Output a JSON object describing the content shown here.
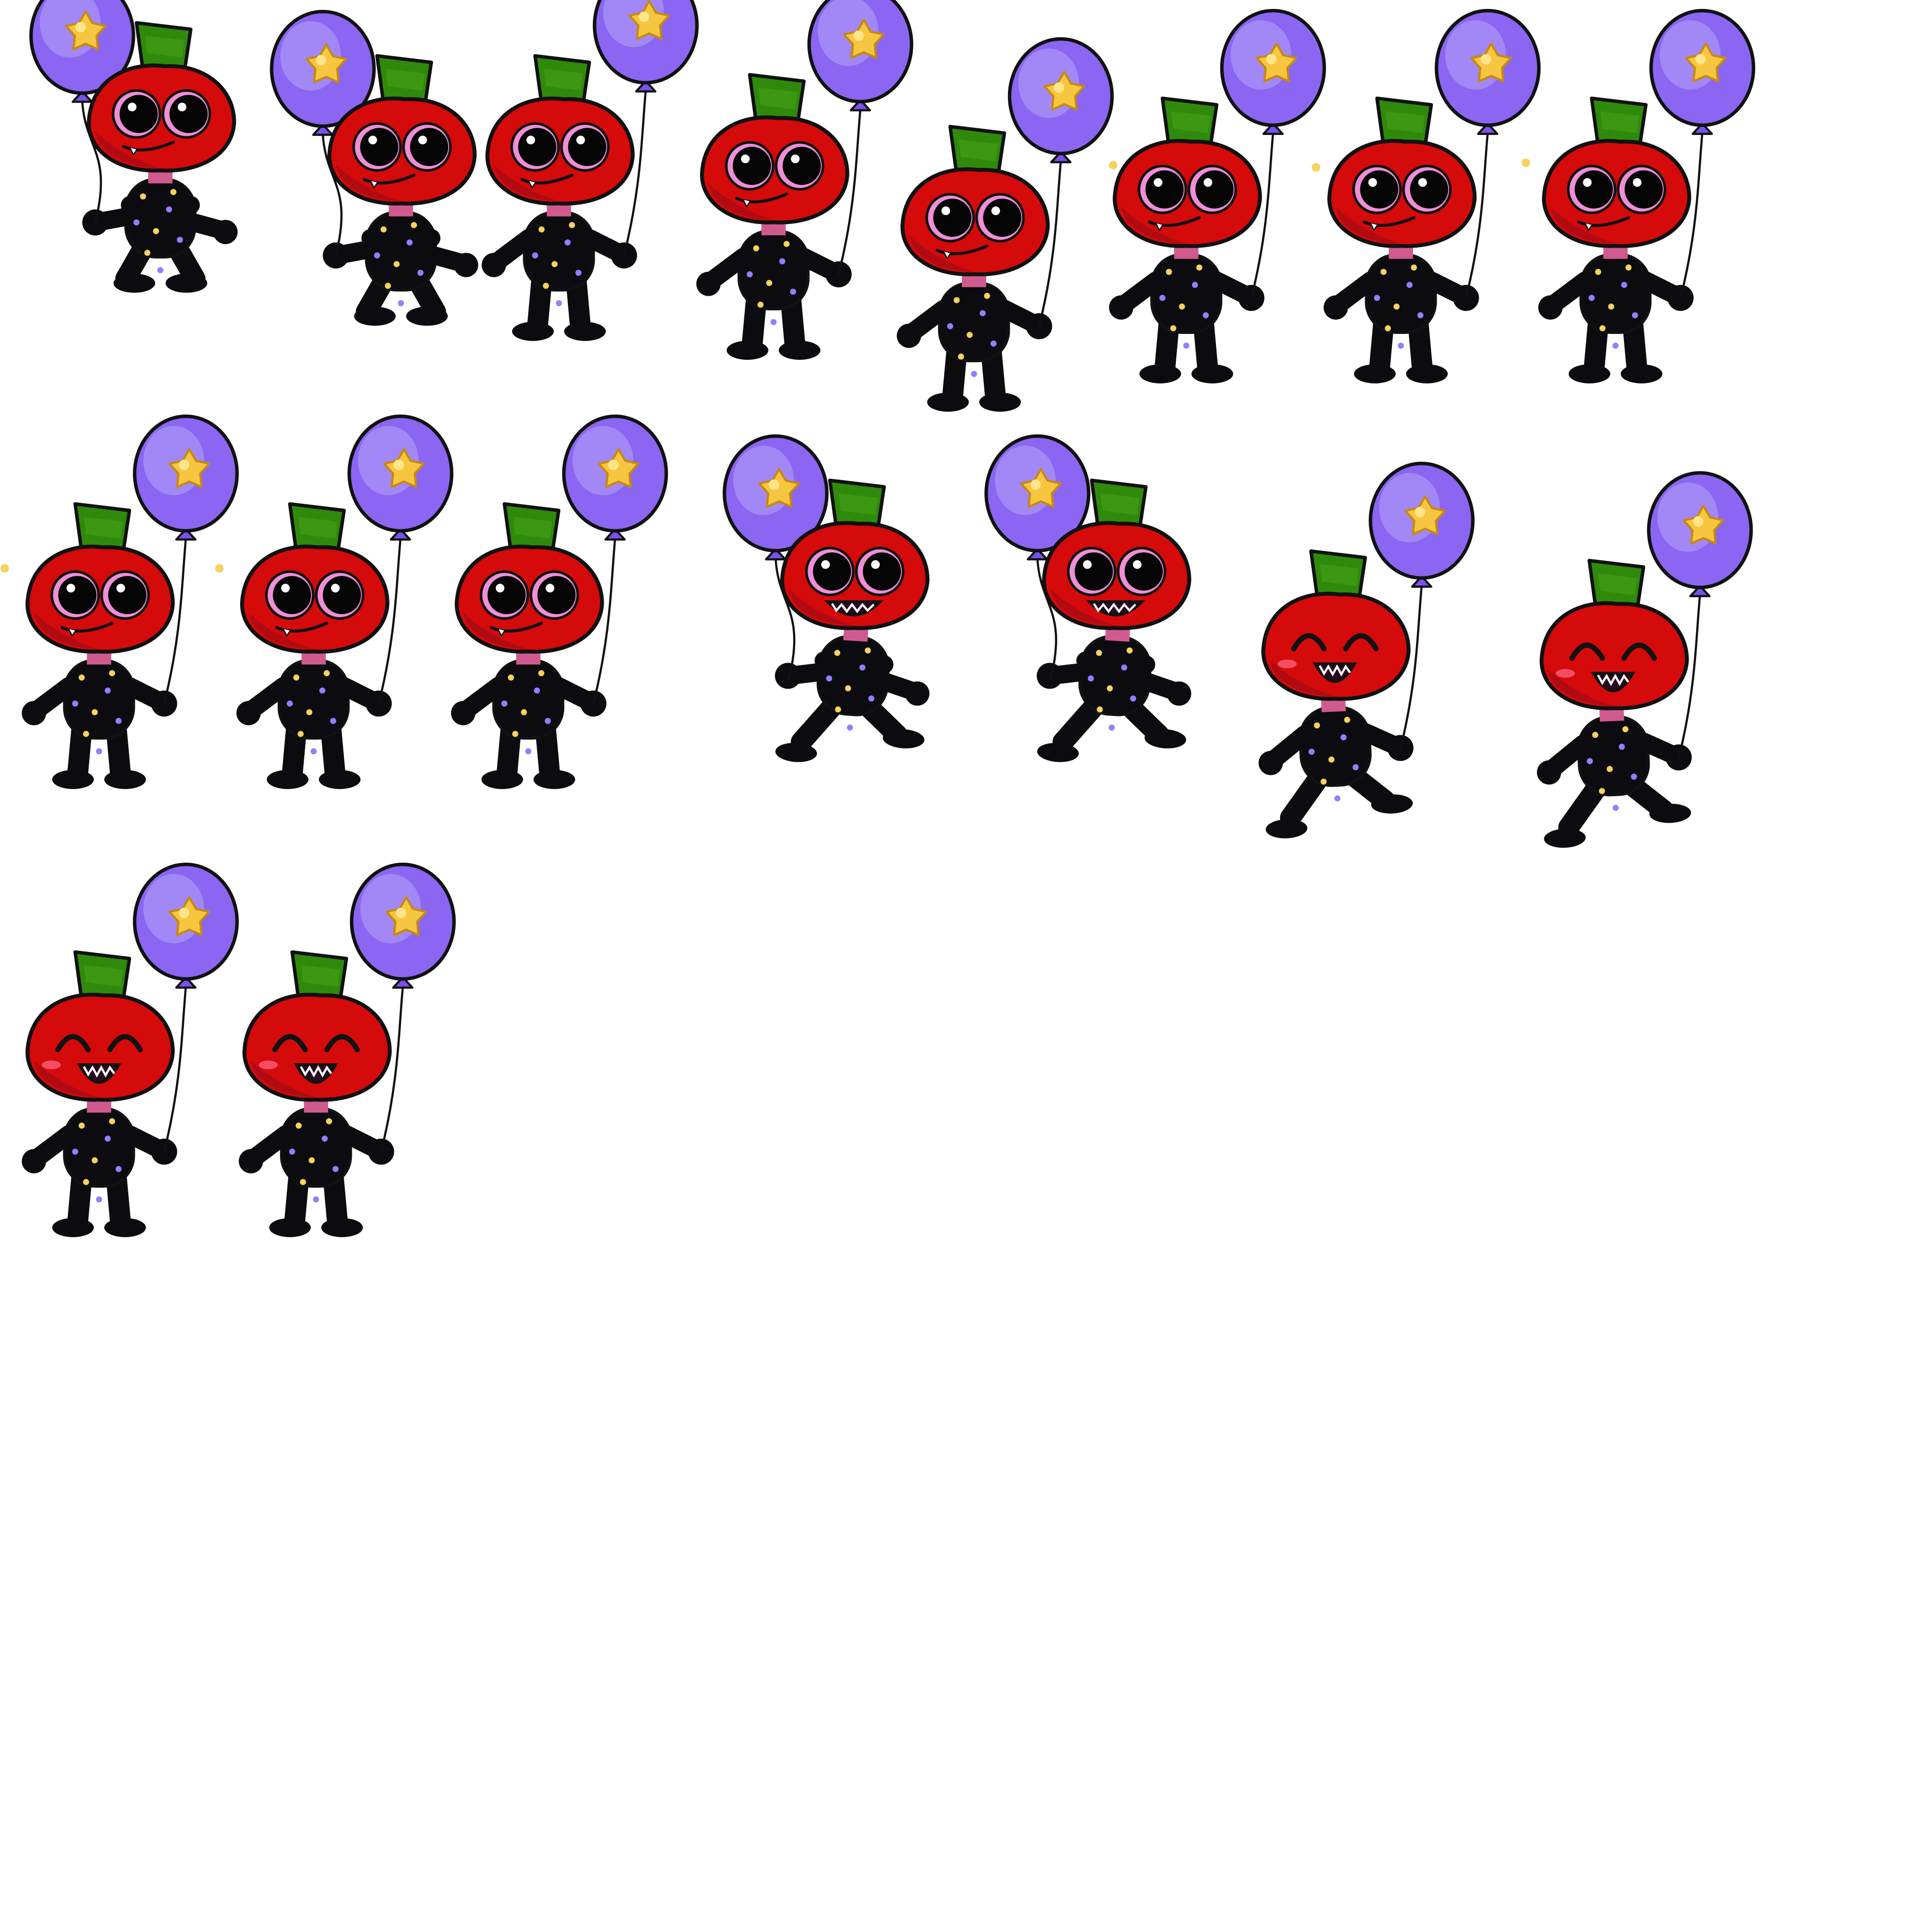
{
  "sheet": {
    "background": "#ffffff",
    "colors": {
      "balloon": "#8a66f2",
      "balloon_dark": "#7a50ee",
      "balloon_highlight": "#b6a2fb",
      "star": "#f7c640",
      "star_highlight": "#ffe58a",
      "head": "#d50a0a",
      "head_shade": "#a80a14",
      "hat": "#2f8a0b",
      "hat_highlight": "#4aa51a",
      "body": "#0c0b0f",
      "eye_ring": "#ee8fd6",
      "neck": "#d05a8e",
      "outline": "#111111",
      "sparkle_yellow": "#f4d35e",
      "sparkle_purple": "#9a7bff"
    },
    "rows": [
      {
        "name": "row-1",
        "frames": [
          {
            "index": 1,
            "expression": "wide-eyes",
            "balloon_side": "left",
            "pose": "crouch"
          },
          {
            "index": 2,
            "expression": "wide-eyes",
            "balloon_side": "left",
            "pose": "crouch"
          },
          {
            "index": 3,
            "expression": "wide-eyes",
            "balloon_side": "right",
            "pose": "stand"
          },
          {
            "index": 4,
            "expression": "wide-eyes",
            "balloon_side": "right",
            "pose": "stand"
          },
          {
            "index": 5,
            "expression": "wide-eyes",
            "balloon_side": "right",
            "pose": "stand"
          },
          {
            "index": 6,
            "expression": "wide-eyes",
            "balloon_side": "right",
            "pose": "stand"
          },
          {
            "index": 7,
            "expression": "wide-eyes",
            "balloon_side": "right",
            "pose": "stand"
          },
          {
            "index": 8,
            "expression": "wide-eyes",
            "balloon_side": "right",
            "pose": "stand"
          }
        ]
      },
      {
        "name": "row-2",
        "frames": [
          {
            "index": 9,
            "expression": "wide-eyes",
            "balloon_side": "right",
            "pose": "stand"
          },
          {
            "index": 10,
            "expression": "wide-eyes",
            "balloon_side": "right",
            "pose": "stand"
          },
          {
            "index": 11,
            "expression": "wide-eyes",
            "balloon_side": "right",
            "pose": "stand"
          },
          {
            "index": 12,
            "expression": "grin",
            "balloon_side": "left",
            "pose": "walk"
          },
          {
            "index": 13,
            "expression": "grin",
            "balloon_side": "left",
            "pose": "walk"
          },
          {
            "index": 14,
            "expression": "happy-closed-eyes",
            "balloon_side": "right",
            "pose": "walk"
          },
          {
            "index": 15,
            "expression": "happy-closed-eyes",
            "balloon_side": "right",
            "pose": "walk"
          }
        ]
      },
      {
        "name": "row-3",
        "frames": [
          {
            "index": 16,
            "expression": "happy-closed-eyes",
            "balloon_side": "right",
            "pose": "stand"
          },
          {
            "index": 17,
            "expression": "happy-closed-eyes",
            "balloon_side": "right",
            "pose": "stand"
          }
        ]
      }
    ]
  }
}
